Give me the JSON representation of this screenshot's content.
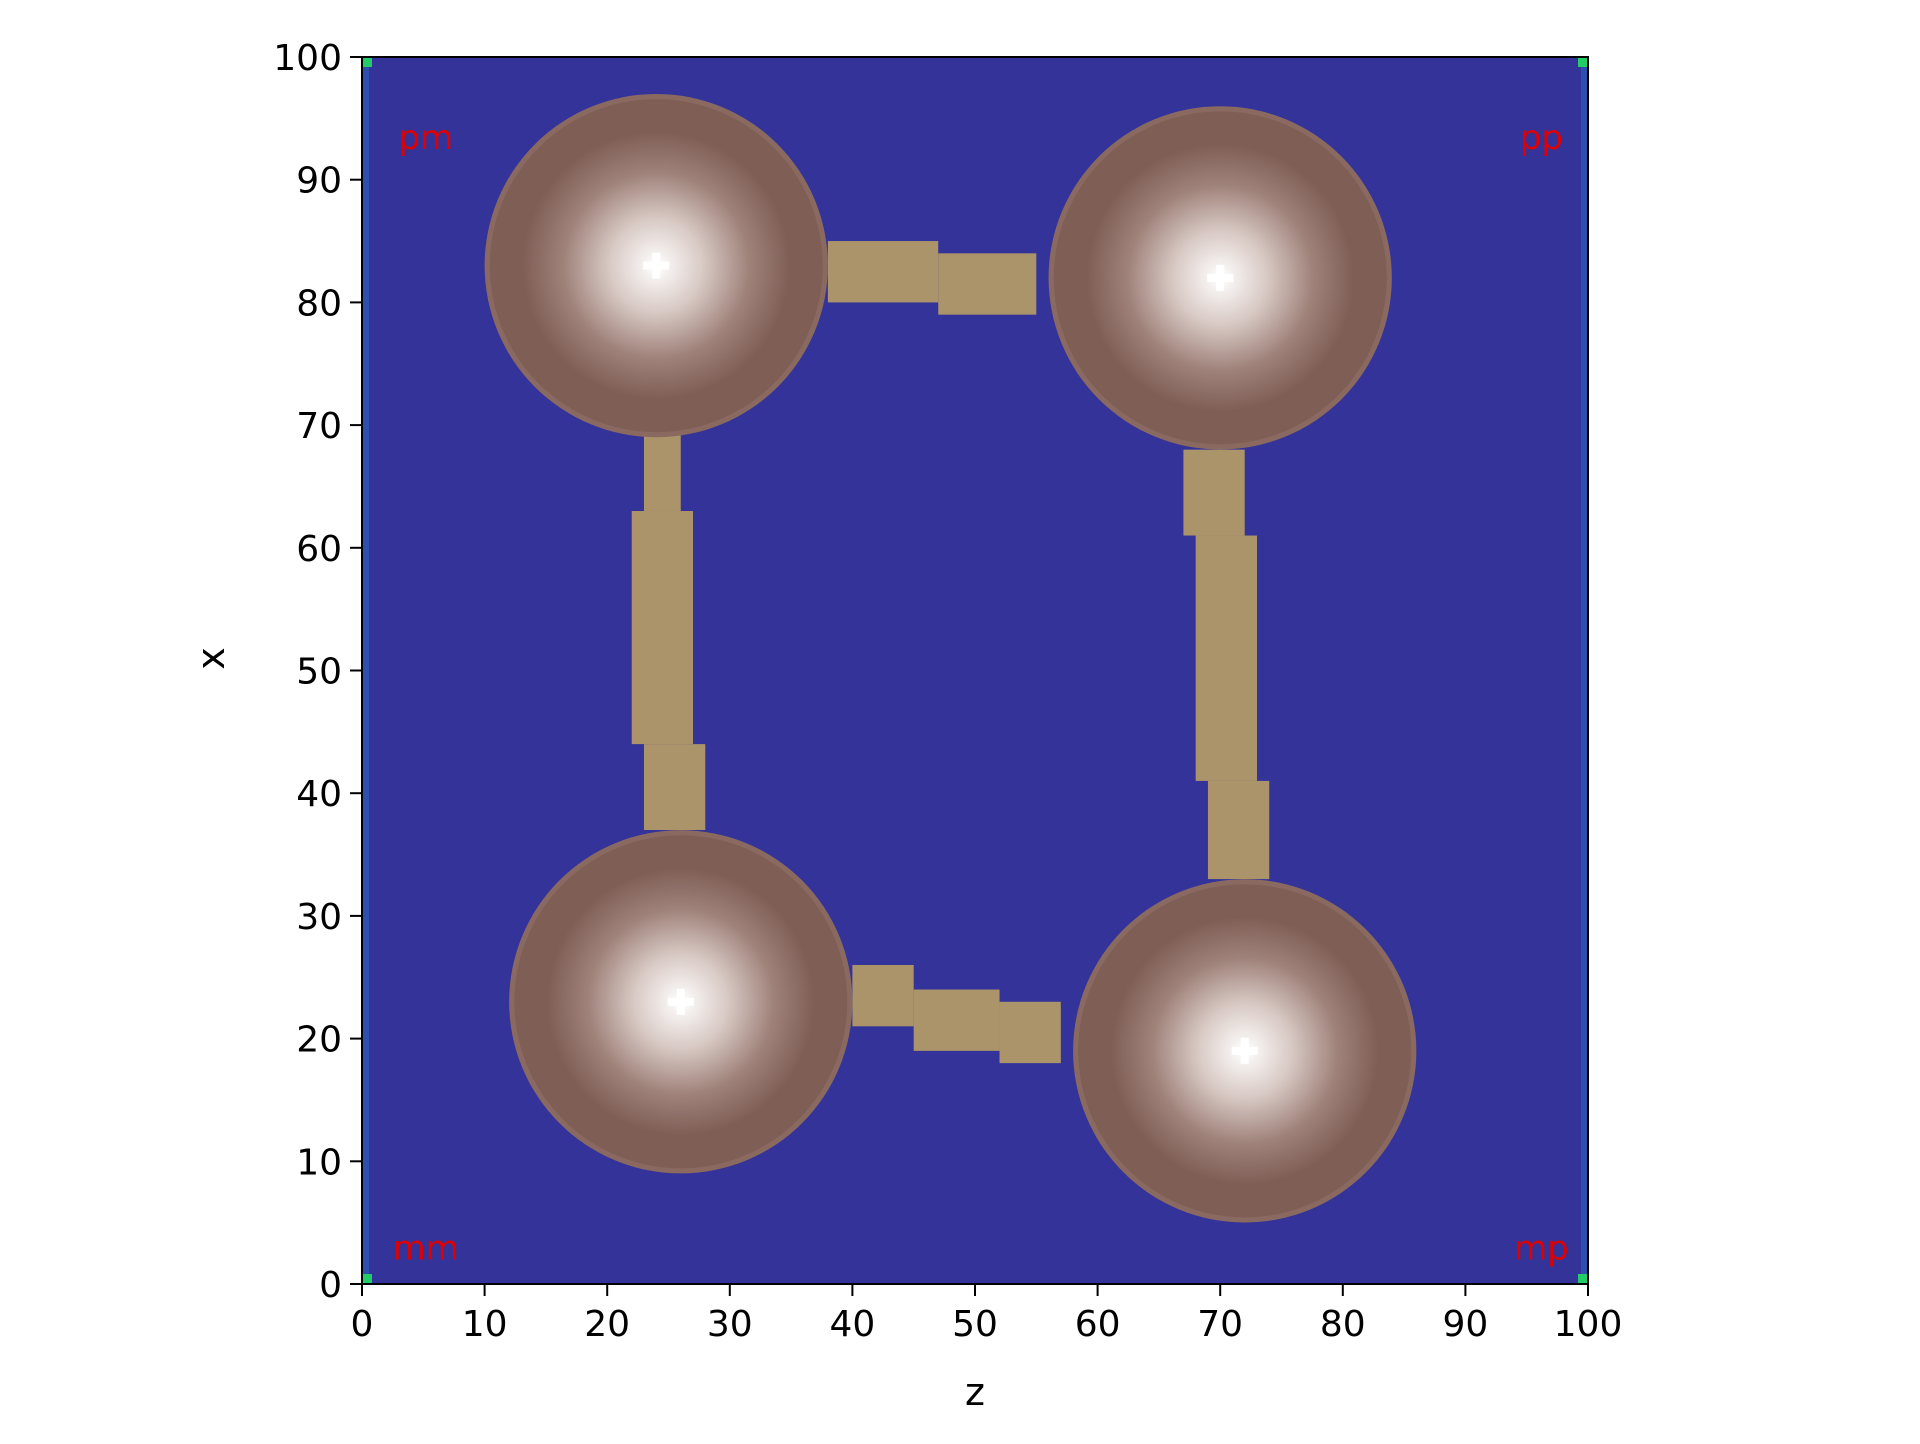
{
  "chart_data": {
    "type": "heatmap",
    "title": "",
    "xlabel": "z",
    "ylabel": "x",
    "xlim": [
      0,
      100
    ],
    "ylim": [
      0,
      100
    ],
    "xticks": [
      "0",
      "10",
      "20",
      "30",
      "40",
      "50",
      "60",
      "70",
      "80",
      "90",
      "100"
    ],
    "yticks": [
      "0",
      "10",
      "20",
      "30",
      "40",
      "50",
      "60",
      "70",
      "80",
      "90",
      "100"
    ],
    "background_color": "#333399",
    "bond_color": "#ab9469",
    "blob_colors": {
      "rim": "#7f5e55",
      "edge": "#9e8179",
      "center": "#ffffff"
    },
    "corner_labels": [
      {
        "text": "pm",
        "corner": "top-left"
      },
      {
        "text": "pp",
        "corner": "top-right"
      },
      {
        "text": "mm",
        "corner": "bottom-left"
      },
      {
        "text": "mp",
        "corner": "bottom-right"
      }
    ],
    "corner_label_color": "#e00000",
    "corner_marker_color": "#22cc66",
    "blobs": [
      {
        "name": "pm",
        "z": 24,
        "x": 83,
        "radius": 14
      },
      {
        "name": "pp",
        "z": 70,
        "x": 82,
        "radius": 14
      },
      {
        "name": "mm",
        "z": 26,
        "x": 23,
        "radius": 14
      },
      {
        "name": "mp",
        "z": 72,
        "x": 19,
        "radius": 14
      }
    ],
    "bonds": [
      {
        "segments": [
          [
            38,
            85,
            47,
            80
          ],
          [
            47,
            84,
            55,
            79
          ]
        ]
      },
      {
        "segments": [
          [
            23,
            70,
            26,
            63
          ],
          [
            22,
            63,
            27,
            44
          ],
          [
            23,
            44,
            28,
            37
          ]
        ]
      },
      {
        "segments": [
          [
            67,
            68,
            72,
            61
          ],
          [
            68,
            61,
            73,
            41
          ],
          [
            69,
            41,
            74,
            33
          ]
        ]
      },
      {
        "segments": [
          [
            40,
            26,
            45,
            21
          ],
          [
            45,
            24,
            52,
            19
          ],
          [
            52,
            23,
            57,
            18
          ]
        ]
      }
    ]
  }
}
